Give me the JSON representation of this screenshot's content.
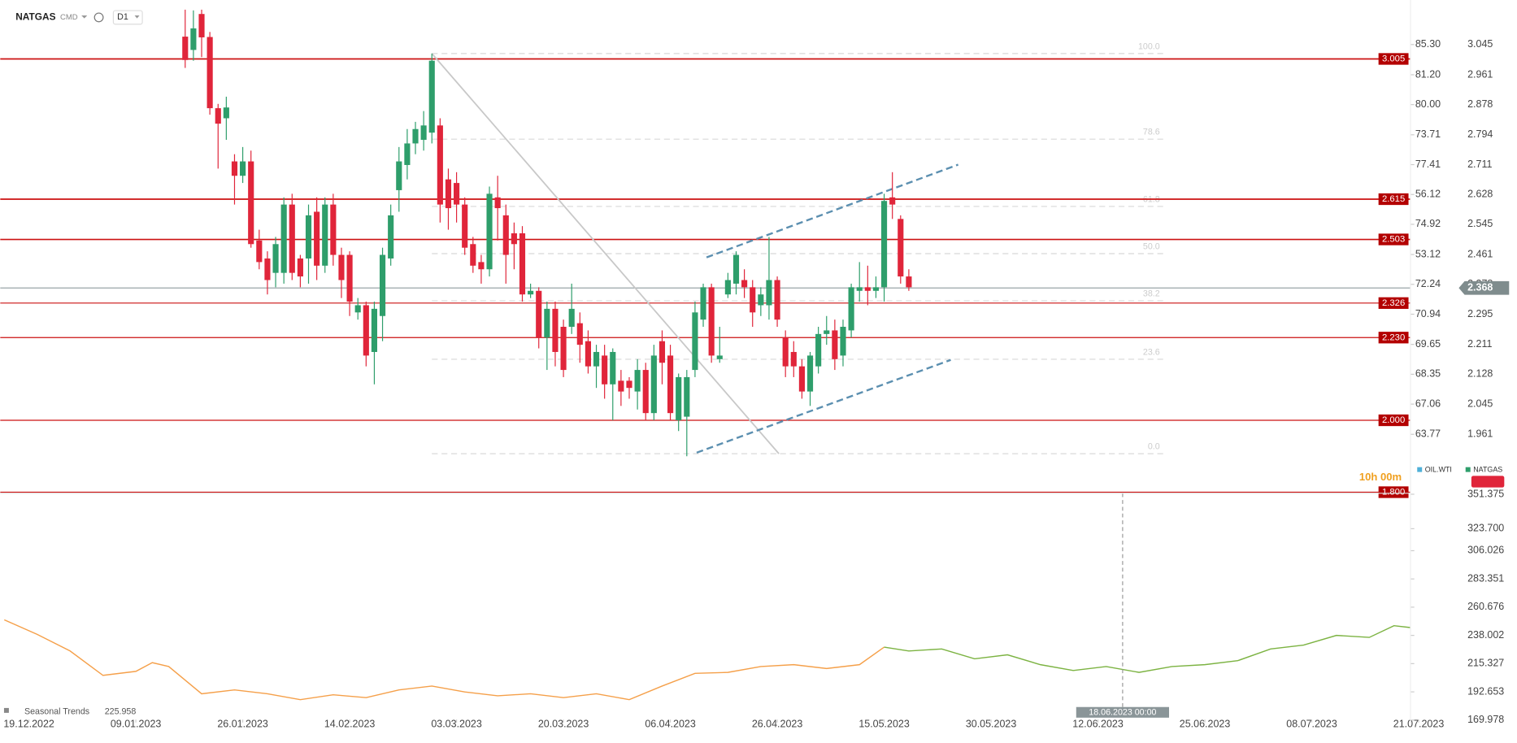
{
  "chart_data": {
    "type": "candlestick",
    "title": "NATGAS",
    "exchange": "CMD",
    "interval": "D1",
    "up_color": "#2e9e6b",
    "down_color": "#e0253a",
    "x": [
      19,
      20,
      21,
      22,
      23,
      24,
      25,
      26,
      27,
      28,
      29,
      30,
      31,
      32,
      33,
      34,
      35,
      36,
      37,
      38,
      39,
      40,
      41,
      42,
      43,
      44,
      45,
      46,
      47,
      48,
      49,
      50,
      51,
      52,
      53,
      54,
      55,
      56,
      57,
      58,
      59,
      60,
      61,
      62,
      63,
      64,
      65,
      66,
      67,
      68,
      69,
      70,
      71,
      72,
      73,
      74,
      75,
      76,
      77,
      78,
      79,
      80,
      81,
      82,
      83,
      84,
      85,
      86,
      87,
      88,
      89,
      90,
      91,
      92,
      93,
      94,
      95,
      96,
      97,
      98,
      99,
      100,
      101,
      102,
      103,
      104,
      105,
      106,
      107
    ],
    "open": [
      3.067,
      3.03,
      3.13,
      3.066,
      2.868,
      2.84,
      2.72,
      2.68,
      2.72,
      2.5,
      2.45,
      2.41,
      2.41,
      2.6,
      2.45,
      2.45,
      2.58,
      2.43,
      2.6,
      2.46,
      2.46,
      2.3,
      2.32,
      2.19,
      2.29,
      2.45,
      2.64,
      2.71,
      2.77,
      2.78,
      2.8,
      2.82,
      2.67,
      2.66,
      2.6,
      2.49,
      2.44,
      2.42,
      2.62,
      2.57,
      2.52,
      2.52,
      2.35,
      2.36,
      2.23,
      2.31,
      2.26,
      2.26,
      2.27,
      2.22,
      2.15,
      2.18,
      2.1,
      2.11,
      2.11,
      2.08,
      2.14,
      2.02,
      2.22,
      2.18,
      2.0,
      2.01,
      2.14,
      2.28,
      2.37,
      2.17,
      2.35,
      2.38,
      2.39,
      2.37,
      2.32,
      2.32,
      2.39,
      2.23,
      2.19,
      2.15,
      2.08,
      2.15,
      2.24,
      2.25,
      2.18,
      2.25,
      2.36,
      2.37,
      2.36,
      2.37,
      2.62,
      2.56,
      2.4
    ],
    "high": [
      3.142,
      3.14,
      3.142,
      3.08,
      2.88,
      2.9,
      2.74,
      2.76,
      2.75,
      2.53,
      2.47,
      2.51,
      2.62,
      2.63,
      2.46,
      2.6,
      2.62,
      2.62,
      2.63,
      2.48,
      2.47,
      2.34,
      2.33,
      2.33,
      2.48,
      2.6,
      2.76,
      2.81,
      2.83,
      2.86,
      3.02,
      2.84,
      2.7,
      2.69,
      2.62,
      2.51,
      2.46,
      2.65,
      2.68,
      2.6,
      2.55,
      2.54,
      2.38,
      2.37,
      2.33,
      2.33,
      2.28,
      2.38,
      2.3,
      2.25,
      2.21,
      2.21,
      2.2,
      2.14,
      2.12,
      2.17,
      2.16,
      2.21,
      2.25,
      2.21,
      2.13,
      2.14,
      2.33,
      2.38,
      2.38,
      2.26,
      2.41,
      2.47,
      2.42,
      2.39,
      2.37,
      2.51,
      2.4,
      2.25,
      2.22,
      2.17,
      2.19,
      2.26,
      2.29,
      2.28,
      2.28,
      2.38,
      2.44,
      2.43,
      2.4,
      2.63,
      2.69,
      2.57,
      2.42
    ],
    "low": [
      2.98,
      3.0,
      3.01,
      2.85,
      2.7,
      2.78,
      2.6,
      2.66,
      2.48,
      2.42,
      2.35,
      2.37,
      2.38,
      2.39,
      2.37,
      2.38,
      2.39,
      2.41,
      2.43,
      2.34,
      2.29,
      2.28,
      2.15,
      2.1,
      2.22,
      2.43,
      2.58,
      2.67,
      2.74,
      2.75,
      2.77,
      2.55,
      2.53,
      2.55,
      2.46,
      2.41,
      2.38,
      2.4,
      2.5,
      2.38,
      2.42,
      2.33,
      2.34,
      2.2,
      2.14,
      2.15,
      2.12,
      2.24,
      2.16,
      2.13,
      2.09,
      2.06,
      2.0,
      2.04,
      2.06,
      2.03,
      2.0,
      2.0,
      2.1,
      2.0,
      1.97,
      1.9,
      2.12,
      2.26,
      2.16,
      2.16,
      2.34,
      2.35,
      2.34,
      2.26,
      2.29,
      2.28,
      2.26,
      2.12,
      2.12,
      2.06,
      2.04,
      2.13,
      2.21,
      2.14,
      2.15,
      2.23,
      2.33,
      2.32,
      2.34,
      2.33,
      2.56,
      2.38,
      2.36
    ],
    "close": [
      3.002,
      3.09,
      3.065,
      2.868,
      2.825,
      2.87,
      2.68,
      2.72,
      2.49,
      2.44,
      2.39,
      2.49,
      2.6,
      2.41,
      2.4,
      2.57,
      2.43,
      2.6,
      2.46,
      2.39,
      2.33,
      2.32,
      2.18,
      2.31,
      2.46,
      2.57,
      2.72,
      2.77,
      2.81,
      2.82,
      3.0,
      2.6,
      2.59,
      2.6,
      2.48,
      2.43,
      2.42,
      2.63,
      2.59,
      2.46,
      2.49,
      2.35,
      2.36,
      2.23,
      2.31,
      2.19,
      2.14,
      2.31,
      2.21,
      2.15,
      2.19,
      2.1,
      2.19,
      2.08,
      2.09,
      2.14,
      2.02,
      2.18,
      2.16,
      2.02,
      2.12,
      2.12,
      2.3,
      2.37,
      2.18,
      2.18,
      2.39,
      2.46,
      2.37,
      2.3,
      2.35,
      2.39,
      2.28,
      2.15,
      2.15,
      2.08,
      2.18,
      2.24,
      2.25,
      2.17,
      2.26,
      2.37,
      2.37,
      2.36,
      2.37,
      2.61,
      2.6,
      2.4,
      2.37
    ],
    "xlim": [
      -3.5,
      168
    ],
    "xticks": [
      {
        "value": 0,
        "label": "19.12.2022"
      },
      {
        "value": 13,
        "label": "09.01.2023"
      },
      {
        "value": 26,
        "label": "26.01.2023"
      },
      {
        "value": 39,
        "label": "14.02.2023"
      },
      {
        "value": 52,
        "label": "03.03.2023"
      },
      {
        "value": 65,
        "label": "20.03.2023"
      },
      {
        "value": 78,
        "label": "06.04.2023"
      },
      {
        "value": 91,
        "label": "26.04.2023"
      },
      {
        "value": 104,
        "label": "15.05.2023"
      },
      {
        "value": 117,
        "label": "30.05.2023"
      },
      {
        "value": 130,
        "label": "12.06.2023"
      },
      {
        "value": 143,
        "label": "25.06.2023"
      },
      {
        "value": 156,
        "label": "08.07.2023"
      },
      {
        "value": 169,
        "label": "21.07.2023"
      }
    ],
    "ylim": [
      1.797,
      3.142
    ],
    "yticks": [
      3.045,
      2.961,
      2.878,
      2.794,
      2.711,
      2.628,
      2.545,
      2.461,
      2.378,
      2.295,
      2.211,
      2.128,
      2.045,
      1.961
    ],
    "secondary_labels": [
      "85.30",
      "81.20",
      "80.00",
      "73.71",
      "77.41",
      "56.12",
      "74.92",
      "53.12",
      "72.24",
      "70.94",
      "69.65",
      "68.35",
      "67.06",
      "63.77"
    ],
    "levels": [
      3.005,
      2.615,
      2.503,
      2.326,
      {
        "value": 2.23,
        "label": "2.230"
      },
      {
        "value": 2,
        "label": "2.000"
      },
      {
        "value": 1.8,
        "label": "1.800"
      }
    ],
    "level_color": "#cc1111",
    "current_price": 2.368,
    "fibonacci": {
      "low": 1.907,
      "high": 3.02,
      "x": [
        49,
        138
      ],
      "levels": [
        {
          "value": 100,
          "label": "100.0"
        },
        78.6,
        61.8,
        {
          "value": 50,
          "label": "50.0"
        },
        38.2,
        23.6,
        {
          "value": 0,
          "label": "0.0"
        }
      ]
    },
    "trendlines": [
      {
        "color": "#c8c8c8",
        "dashed": false,
        "x": [
          49,
          91.2
        ],
        "y": [
          3.02,
          1.907
        ]
      },
      {
        "color": "#5b8fb0",
        "dashed": true,
        "x": [
          82.4,
          113
        ],
        "y": [
          2.453,
          2.711
        ]
      },
      {
        "color": "#5b8fb0",
        "dashed": true,
        "x": [
          81.2,
          112.1
        ],
        "y": [
          1.91,
          2.168
        ]
      }
    ],
    "legend": [
      {
        "name": "OIL.WTI",
        "color": "#4fb0d8"
      },
      {
        "name": "NATGAS",
        "color": "#2e9e6b"
      }
    ],
    "timer": "10h 00m",
    "crosshair": {
      "x": 133,
      "label": "18.06.2023 00:00"
    },
    "indicator": {
      "type": "line",
      "name": "Seasonal Trends",
      "value": 225.958,
      "ylim": [
        169.6,
        350.6
      ],
      "yticks": [
        351.375,
        {
          "value": 323.7,
          "label": "323.700"
        },
        306.026,
        283.351,
        260.676,
        238.002,
        215.327,
        192.653,
        169.978
      ],
      "series": [
        {
          "color": "#f5a04a",
          "x": [
            -3,
            1,
            5,
            9,
            13,
            15,
            17,
            21,
            25,
            29,
            33,
            37,
            41,
            45,
            49,
            53,
            57,
            61,
            65,
            69,
            73,
            77,
            81,
            85,
            89,
            93,
            97,
            101,
            104
          ],
          "values": [
            250.5,
            238.8,
            225.5,
            205.9,
            209.1,
            216.1,
            213.0,
            191.1,
            194.2,
            191.1,
            186.4,
            190.3,
            188.0,
            194.2,
            197.3,
            192.6,
            189.5,
            191.1,
            188.0,
            191.1,
            186.4,
            197.3,
            207.5,
            208.3,
            213.0,
            214.5,
            211.4,
            214.5,
            228.6
          ]
        },
        {
          "color": "#7cb342",
          "x": [
            104,
            107,
            111,
            115,
            119,
            123,
            127,
            131,
            135,
            139,
            143,
            147,
            151,
            155,
            159,
            163,
            166,
            168
          ],
          "values": [
            228.6,
            225.5,
            227.1,
            219.2,
            222.4,
            214.5,
            209.8,
            213.0,
            208.3,
            213.0,
            214.5,
            217.7,
            227.1,
            230.2,
            238.0,
            236.4,
            245.8,
            244.3
          ]
        }
      ]
    }
  }
}
